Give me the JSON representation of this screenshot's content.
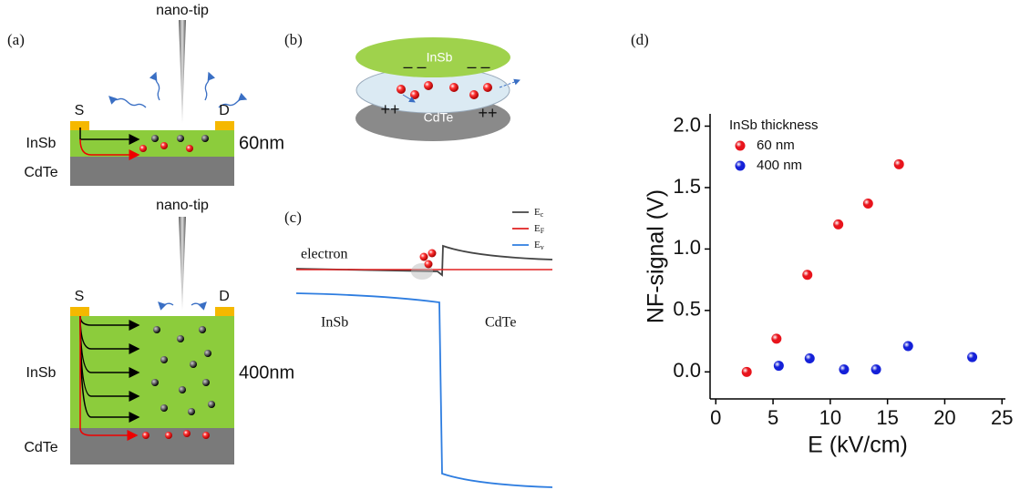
{
  "panel_a": {
    "label": "(a)",
    "top": {
      "tip": "nano-tip",
      "source": "S",
      "drain": "D",
      "layer": "InSb",
      "substrate": "CdTe",
      "thickness": "60nm"
    },
    "bottom": {
      "tip": "nano-tip",
      "source": "S",
      "drain": "D",
      "layer": "InSb",
      "substrate": "CdTe",
      "thickness": "400nm"
    }
  },
  "panel_b": {
    "label": "(b)",
    "top_layer": "InSb",
    "bottom_layer": "CdTe",
    "top_charges": [
      "– –",
      "– –"
    ],
    "bottom_charges": [
      "++",
      "++"
    ]
  },
  "panel_c": {
    "label": "(c)",
    "electron": "electron",
    "left": "InSb",
    "right": "CdTe",
    "legend": [
      {
        "symbol": "E",
        "subscript": "c"
      },
      {
        "symbol": "E",
        "subscript": "F"
      },
      {
        "symbol": "E",
        "subscript": "v"
      }
    ]
  },
  "chart_data": {
    "type": "scatter",
    "panel_label": "(d)",
    "xlabel": "E (kV/cm)",
    "ylabel": "NF-signal (V)",
    "legend_title": "InSb thickness",
    "legend": "upper left",
    "xlim": [
      -0.5,
      25.3
    ],
    "ylim": [
      -0.22,
      2.1
    ],
    "xticks": [
      0,
      5,
      10,
      15,
      20,
      25
    ],
    "yticks": [
      {
        "value": 0,
        "label": "0.0"
      },
      0.5,
      {
        "value": 1,
        "label": "1.0"
      },
      1.5,
      {
        "value": 2,
        "label": "2.0"
      }
    ],
    "series": [
      {
        "name": "60 nm",
        "color": "#e8141c",
        "x": [
          2.7,
          5.3,
          8.0,
          10.7,
          13.3,
          16.0
        ],
        "values": [
          0.0,
          0.27,
          0.79,
          1.2,
          1.37,
          1.69
        ]
      },
      {
        "name": "400 nm",
        "color": "#1420d8",
        "x": [
          5.5,
          8.2,
          11.2,
          14.0,
          16.8,
          22.4
        ],
        "values": [
          0.05,
          0.11,
          0.02,
          0.02,
          0.21,
          0.12
        ]
      }
    ]
  }
}
